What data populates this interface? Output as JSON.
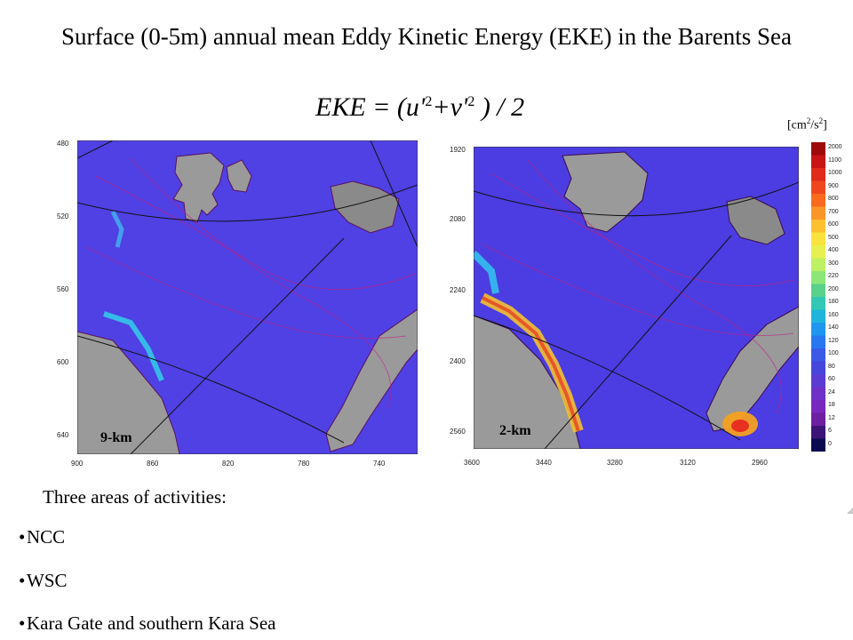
{
  "slide": {
    "title": "Surface (0-5m) annual mean Eddy Kinetic Energy (EKE) in the Barents Sea",
    "formula": {
      "lhs": "EKE",
      "rhs_open": " = (u'",
      "plus": "+v'",
      "rhs_close": " ) / 2",
      "exp": "2"
    },
    "unit": {
      "base": "[cm",
      "mid": "/s",
      "exp": "2",
      "close": "]"
    }
  },
  "maps": [
    {
      "label": "9-km",
      "y_ticks": [
        "480",
        "520",
        "560",
        "600",
        "640"
      ],
      "x_ticks": [
        "900",
        "860",
        "820",
        "780",
        "740"
      ]
    },
    {
      "label": "2-km",
      "y_ticks": [
        "1920",
        "2080",
        "2240",
        "2400",
        "2560"
      ],
      "x_ticks": [
        "3600",
        "3440",
        "3280",
        "3120",
        "2960"
      ]
    }
  ],
  "colorbar": {
    "labels": [
      "2000",
      "1100",
      "1000",
      "900",
      "800",
      "700",
      "600",
      "500",
      "400",
      "300",
      "220",
      "200",
      "180",
      "160",
      "140",
      "120",
      "100",
      "80",
      "60",
      "24",
      "18",
      "12",
      "6",
      "0"
    ],
    "colors": [
      "#9e0a0a",
      "#c81414",
      "#e02a1c",
      "#f0461e",
      "#f86a1e",
      "#fa9628",
      "#fcc030",
      "#fae23c",
      "#e6f050",
      "#bef064",
      "#8ce678",
      "#5ad28c",
      "#32c8b4",
      "#1eb4dc",
      "#1e96f0",
      "#2878f0",
      "#3c5ae6",
      "#4646dc",
      "#5a3cd2",
      "#6e32c8",
      "#7828be",
      "#6e1ea0",
      "#3c1478",
      "#0a0a50"
    ]
  },
  "activities": {
    "heading": "Three areas of activities:",
    "items": [
      "NCC",
      "WSC",
      "Kara Gate and southern Kara Sea"
    ],
    "bullet": "•"
  }
}
